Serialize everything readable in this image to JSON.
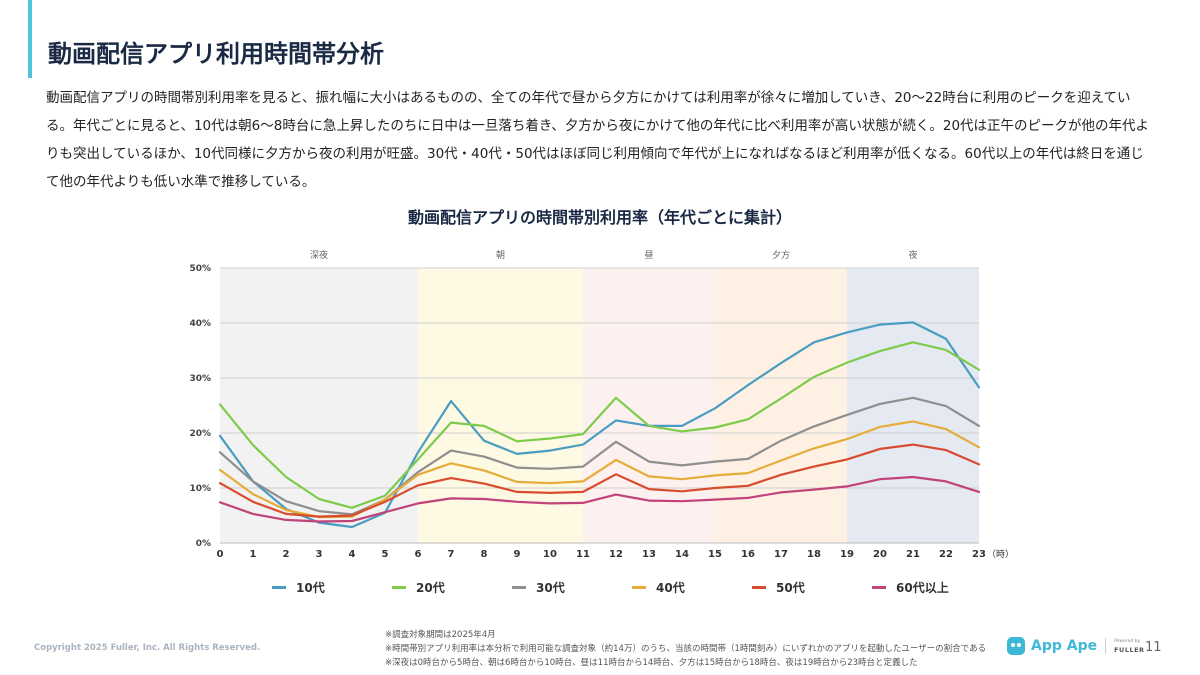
{
  "page": {
    "title": "動画配信アプリ利用時間帯分析",
    "description": "動画配信アプリの時間帯別利用率を見ると、振れ幅に大小はあるものの、全ての年代で昼から夕方にかけては利用率が徐々に増加していき、20〜22時台に利用のピークを迎えている。年代ごとに見ると、10代は朝6〜8時台に急上昇したのちに日中は一旦落ち着き、夕方から夜にかけて他の年代に比べ利用率が高い状態が続く。20代は正午のピークが他の年代よりも突出しているほか、10代同様に夕方から夜の利用が旺盛。30代・40代・50代はほぼ同じ利用傾向で年代が上になればなるほど利用率が低くなる。60代以上の年代は終日を通じて他の年代よりも低い水準で推移している。",
    "copyright": "Copyright 2025 Fuller, Inc. All Rights Reserved.",
    "notes": [
      "※調査対象期間は2025年4月",
      "※時間帯別アプリ利用率は本分析で利用可能な調査対象（約14万）のうち、当該の時間帯（1時間刻み）にいずれかのアプリを起動したユーザーの割合である",
      "※深夜は0時台から5時台、朝は6時台から10時台、昼は11時台から14時台、夕方は15時台から18時台、夜は19時台から23時台と定義した"
    ],
    "logo": {
      "name": "App Ape",
      "powered_by": "Powered by",
      "company": "FULLER"
    },
    "page_number": "11"
  },
  "chart_data": {
    "type": "line",
    "title": "動画配信アプリの時間帯別利用率（年代ごとに集計）",
    "x": [
      0,
      1,
      2,
      3,
      4,
      5,
      6,
      7,
      8,
      9,
      10,
      11,
      12,
      13,
      14,
      15,
      16,
      17,
      18,
      19,
      20,
      21,
      22,
      23
    ],
    "x_unit": "（時）",
    "ylim": [
      0,
      50
    ],
    "y_ticks": [
      "0%",
      "10%",
      "20%",
      "30%",
      "40%",
      "50%"
    ],
    "grid": true,
    "legend_position": "bottom",
    "bands": [
      {
        "label": "深夜",
        "from": 0,
        "to": 6,
        "color": "#f2f2f2"
      },
      {
        "label": "朝",
        "from": 6,
        "to": 11,
        "color": "#fdf9e3"
      },
      {
        "label": "昼",
        "from": 11,
        "to": 15,
        "color": "#fdf1ef"
      },
      {
        "label": "夕方",
        "from": 15,
        "to": 19,
        "color": "#fef1e4"
      },
      {
        "label": "夜",
        "from": 19,
        "to": 23,
        "color": "#e4e9f2"
      }
    ],
    "series": [
      {
        "name": "10代",
        "color": "#4a9cc0",
        "values": [
          19.5,
          11.2,
          6.2,
          3.7,
          2.9,
          5.5,
          16.5,
          25.8,
          18.6,
          16.2,
          16.8,
          17.9,
          22.3,
          21.3,
          21.3,
          24.5,
          28.7,
          32.7,
          36.5,
          38.3,
          39.7,
          40.1,
          37.1,
          28.3
        ]
      },
      {
        "name": "20代",
        "color": "#7ecb4c",
        "values": [
          25.2,
          17.8,
          12.0,
          8.0,
          6.4,
          8.6,
          15.2,
          21.9,
          21.3,
          18.5,
          19.0,
          19.8,
          26.4,
          21.3,
          20.3,
          21.0,
          22.5,
          26.3,
          30.2,
          32.8,
          34.9,
          36.5,
          35.1,
          31.5
        ]
      },
      {
        "name": "30代",
        "color": "#8f8f8f",
        "values": [
          16.5,
          11.2,
          7.6,
          5.8,
          5.2,
          7.9,
          12.9,
          16.8,
          15.7,
          13.7,
          13.5,
          13.9,
          18.4,
          14.8,
          14.1,
          14.8,
          15.3,
          18.6,
          21.2,
          23.3,
          25.3,
          26.4,
          24.9,
          21.3
        ]
      },
      {
        "name": "40代",
        "color": "#e6ac3a",
        "values": [
          13.3,
          8.9,
          6.0,
          4.7,
          4.8,
          7.9,
          12.4,
          14.5,
          13.2,
          11.1,
          10.9,
          11.2,
          15.1,
          12.1,
          11.6,
          12.3,
          12.7,
          15.0,
          17.2,
          18.9,
          21.1,
          22.1,
          20.7,
          17.4
        ]
      },
      {
        "name": "50代",
        "color": "#d94b2e",
        "values": [
          10.9,
          7.5,
          5.3,
          4.8,
          5.0,
          7.5,
          10.5,
          11.8,
          10.8,
          9.3,
          9.1,
          9.3,
          12.5,
          9.8,
          9.4,
          10.0,
          10.4,
          12.4,
          13.9,
          15.2,
          17.1,
          17.9,
          16.9,
          14.3
        ]
      },
      {
        "name": "60代以上",
        "color": "#c2437a",
        "values": [
          7.4,
          5.3,
          4.2,
          3.9,
          4.0,
          5.6,
          7.2,
          8.1,
          8.0,
          7.5,
          7.2,
          7.3,
          8.8,
          7.7,
          7.6,
          7.9,
          8.2,
          9.2,
          9.7,
          10.3,
          11.6,
          12.0,
          11.2,
          9.3
        ]
      }
    ]
  }
}
